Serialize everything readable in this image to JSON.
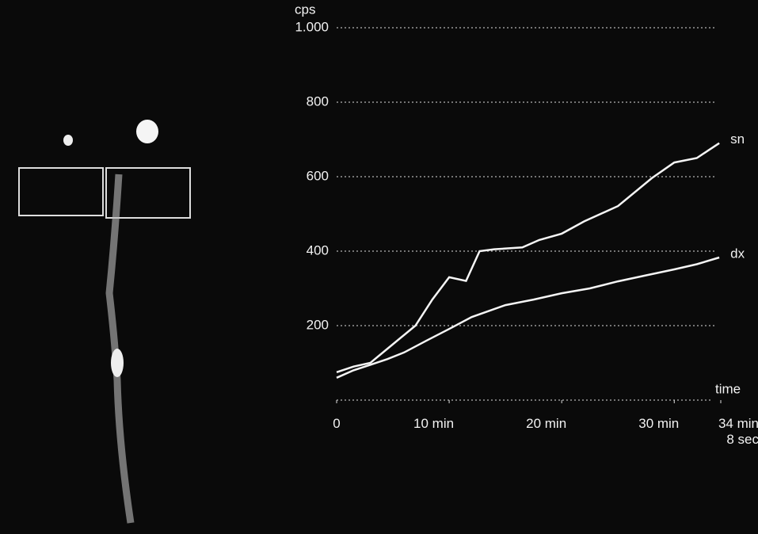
{
  "chart_data": {
    "type": "line",
    "y_label": "cps",
    "x_end_label": "time",
    "xlim": [
      0,
      34.133
    ],
    "ylim": [
      0,
      1000
    ],
    "xticks": [
      0,
      {
        "value": 10,
        "label": "10 min"
      },
      {
        "value": 20,
        "label": "20 min"
      },
      {
        "value": 30,
        "label": "30 min"
      },
      {
        "value": 34.133,
        "label": "34 min 8 sec"
      }
    ],
    "yticks": [
      200,
      400,
      600,
      800,
      {
        "value": 1000,
        "label": "1.000"
      }
    ],
    "grid": true,
    "series": [
      {
        "name": "sn",
        "color": "#f5f5f5",
        "x": [
          0,
          1.5,
          3,
          5,
          7,
          8.5,
          10,
          11.5,
          12.7,
          14,
          16.5,
          18,
          20,
          22,
          25,
          28,
          30,
          32,
          33,
          34
        ],
        "values": [
          75,
          90,
          100,
          150,
          200,
          270,
          330,
          320,
          400,
          405,
          410,
          430,
          447,
          480,
          521,
          596,
          638,
          650,
          670,
          690
        ]
      },
      {
        "name": "dx",
        "color": "#f5f5f5",
        "x": [
          0,
          1.5,
          3,
          4.5,
          6,
          8,
          10,
          12,
          15,
          17.5,
          20,
          22.5,
          25,
          27.5,
          30,
          32,
          34
        ],
        "values": [
          60,
          80,
          95,
          110,
          128,
          160,
          191,
          223,
          255,
          270,
          287,
          300,
          319,
          335,
          351,
          365,
          383
        ]
      }
    ]
  }
}
